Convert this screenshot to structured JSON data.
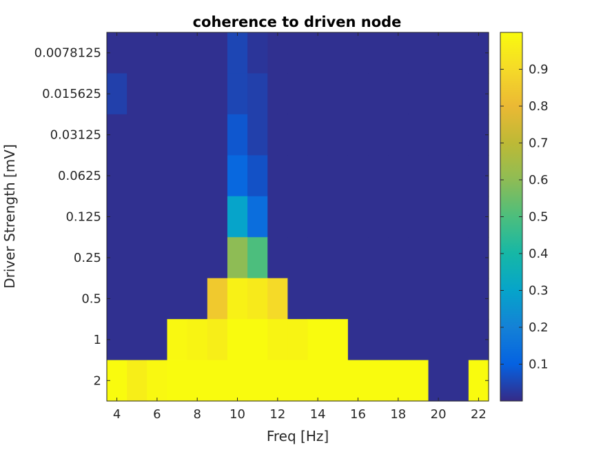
{
  "chart_data": {
    "type": "heatmap",
    "title": "coherence to driven node",
    "xlabel": "Freq [Hz]",
    "ylabel": "Driver Strength [mV]",
    "x": [
      4,
      5,
      6,
      7,
      8,
      9,
      10,
      11,
      12,
      13,
      14,
      15,
      16,
      17,
      18,
      19,
      20,
      21,
      22
    ],
    "x_ticks": [
      4,
      6,
      8,
      10,
      12,
      14,
      16,
      18,
      20,
      22
    ],
    "xlim": [
      3.5,
      22.5
    ],
    "y_categories": [
      "0.0078125",
      "0.015625",
      "0.03125",
      "0.0625",
      "0.125",
      "0.25",
      "0.5",
      "1",
      "2"
    ],
    "values": [
      [
        0.01,
        0.01,
        0.01,
        0.01,
        0.01,
        0.01,
        0.05,
        0.02,
        0.01,
        0.01,
        0.01,
        0.01,
        0.01,
        0.01,
        0.01,
        0.01,
        0.01,
        0.01,
        0.01
      ],
      [
        0.04,
        0.01,
        0.01,
        0.01,
        0.01,
        0.01,
        0.05,
        0.04,
        0.01,
        0.01,
        0.01,
        0.01,
        0.01,
        0.01,
        0.01,
        0.01,
        0.01,
        0.01,
        0.01
      ],
      [
        0.01,
        0.01,
        0.01,
        0.01,
        0.01,
        0.01,
        0.08,
        0.04,
        0.01,
        0.01,
        0.01,
        0.01,
        0.01,
        0.01,
        0.01,
        0.01,
        0.01,
        0.01,
        0.01
      ],
      [
        0.01,
        0.01,
        0.01,
        0.01,
        0.01,
        0.01,
        0.12,
        0.07,
        0.01,
        0.01,
        0.01,
        0.01,
        0.01,
        0.01,
        0.01,
        0.01,
        0.01,
        0.01,
        0.01
      ],
      [
        0.01,
        0.01,
        0.01,
        0.01,
        0.01,
        0.01,
        0.3,
        0.14,
        0.01,
        0.01,
        0.01,
        0.01,
        0.01,
        0.01,
        0.01,
        0.01,
        0.01,
        0.01,
        0.01
      ],
      [
        0.01,
        0.01,
        0.01,
        0.01,
        0.01,
        0.01,
        0.6,
        0.5,
        0.01,
        0.01,
        0.01,
        0.01,
        0.01,
        0.01,
        0.01,
        0.01,
        0.01,
        0.01,
        0.01
      ],
      [
        0.01,
        0.01,
        0.01,
        0.01,
        0.01,
        0.85,
        0.97,
        0.95,
        0.9,
        0.01,
        0.01,
        0.01,
        0.01,
        0.01,
        0.01,
        0.01,
        0.01,
        0.01,
        0.01
      ],
      [
        0.01,
        0.01,
        0.01,
        0.99,
        0.98,
        0.96,
        1.0,
        1.0,
        0.98,
        0.98,
        1.0,
        1.0,
        0.01,
        0.01,
        0.01,
        0.01,
        0.01,
        0.01,
        0.01
      ],
      [
        1.0,
        0.96,
        0.99,
        1.0,
        1.0,
        1.0,
        1.0,
        1.0,
        1.0,
        1.0,
        1.0,
        1.0,
        1.0,
        1.0,
        1.0,
        1.0,
        0.01,
        0.01,
        1.0
      ]
    ],
    "colorbar": {
      "ticks": [
        0.1,
        0.2,
        0.3,
        0.4,
        0.5,
        0.6,
        0.7,
        0.8,
        0.9
      ],
      "tick_labels": [
        "0.1",
        "0.2",
        "0.3",
        "0.4",
        "0.5",
        "0.6",
        "0.7",
        "0.8",
        "0.9"
      ],
      "range": [
        0,
        1
      ],
      "colormap": "parula"
    }
  }
}
